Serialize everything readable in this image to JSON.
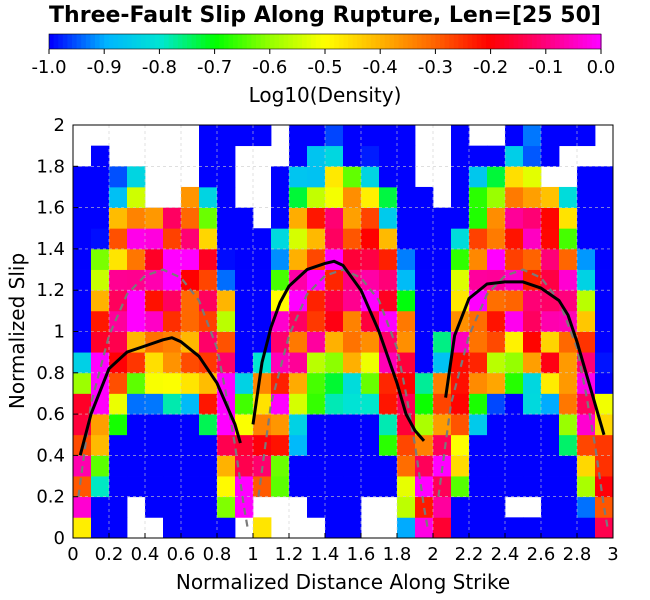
{
  "chart_data": {
    "type": "heatmap",
    "title": "Three-Fault Slip Along Rupture, Len=[25 50]",
    "xlabel": "Normalized Distance Along Strike",
    "ylabel": "Normalized Slip",
    "xlim": [
      0,
      3
    ],
    "ylim": [
      0,
      2
    ],
    "x_ticks": [
      "0",
      "0.2",
      "0.4",
      "0.6",
      "0.8",
      "1",
      "1.2",
      "1.4",
      "1.6",
      "1.8",
      "2",
      "2.2",
      "2.4",
      "2.6",
      "2.8",
      "3"
    ],
    "y_ticks": [
      "0",
      "0.2",
      "0.4",
      "0.6",
      "0.8",
      "1",
      "1.2",
      "1.4",
      "1.6",
      "1.8",
      "2"
    ],
    "grid": true,
    "colorbar": {
      "label": "Log10(Density)",
      "range": [
        -1.0,
        0.0
      ],
      "ticks": [
        "-1.0",
        "-0.9",
        "-0.8",
        "-0.7",
        "-0.6",
        "-0.5",
        "-0.4",
        "-0.3",
        "-0.2",
        "-0.1",
        "0.0"
      ],
      "placement": "top",
      "colors": [
        "#0000ff",
        "#00b4ff",
        "#00e6d2",
        "#00ff00",
        "#96ff00",
        "#ffff00",
        "#ffb400",
        "#ff6400",
        "#ff0000",
        "#ff0078",
        "#ff00ff"
      ]
    },
    "mean_slip_series": {
      "style": "solid black",
      "segments": [
        {
          "x": [
            0.04,
            0.1,
            0.2,
            0.3,
            0.4,
            0.5,
            0.55,
            0.6,
            0.7,
            0.8,
            0.85,
            0.9,
            0.93
          ],
          "y": [
            0.4,
            0.6,
            0.82,
            0.9,
            0.93,
            0.96,
            0.97,
            0.95,
            0.88,
            0.75,
            0.65,
            0.55,
            0.46
          ]
        },
        {
          "x": [
            1.0,
            1.05,
            1.1,
            1.15,
            1.2,
            1.3,
            1.4,
            1.45,
            1.5,
            1.6,
            1.7,
            1.8,
            1.85,
            1.9,
            1.95
          ],
          "y": [
            0.55,
            0.85,
            1.02,
            1.14,
            1.22,
            1.3,
            1.33,
            1.34,
            1.32,
            1.2,
            1.0,
            0.75,
            0.6,
            0.52,
            0.47
          ]
        },
        {
          "x": [
            2.07,
            2.12,
            2.2,
            2.3,
            2.4,
            2.5,
            2.6,
            2.7,
            2.75,
            2.8,
            2.85,
            2.9,
            2.95
          ],
          "y": [
            0.68,
            0.98,
            1.16,
            1.23,
            1.24,
            1.24,
            1.21,
            1.15,
            1.08,
            0.95,
            0.8,
            0.65,
            0.5
          ]
        }
      ]
    },
    "reference_series": {
      "style": "dashed gray",
      "segments": [
        {
          "x": [
            0.03,
            0.1,
            0.2,
            0.3,
            0.4,
            0.5,
            0.6,
            0.7,
            0.8,
            0.85,
            0.9,
            0.95,
            0.97
          ],
          "y": [
            0.2,
            0.65,
            0.98,
            1.18,
            1.27,
            1.3,
            1.26,
            1.15,
            0.92,
            0.7,
            0.45,
            0.15,
            0.05
          ]
        },
        {
          "x": [
            1.03,
            1.1,
            1.2,
            1.3,
            1.4,
            1.5,
            1.6,
            1.7,
            1.8,
            1.85,
            1.9,
            1.95,
            1.97
          ],
          "y": [
            0.2,
            0.65,
            0.98,
            1.18,
            1.27,
            1.3,
            1.26,
            1.15,
            0.92,
            0.7,
            0.45,
            0.15,
            0.05
          ]
        },
        {
          "x": [
            2.03,
            2.1,
            2.2,
            2.3,
            2.4,
            2.5,
            2.6,
            2.7,
            2.8,
            2.85,
            2.9,
            2.95,
            2.97
          ],
          "y": [
            0.2,
            0.65,
            0.98,
            1.18,
            1.27,
            1.3,
            1.26,
            1.15,
            0.92,
            0.7,
            0.45,
            0.15,
            0.05
          ]
        }
      ]
    },
    "density_model": {
      "resolution": [
        30,
        20
      ],
      "fault_bounds": [
        [
          0,
          1
        ],
        [
          1,
          2
        ],
        [
          2,
          3
        ]
      ],
      "peak_log10_density": -0.1,
      "blank_bins": [
        [
          0,
          18
        ],
        [
          0,
          19
        ],
        [
          1,
          19
        ],
        [
          2,
          18
        ],
        [
          2,
          19
        ],
        [
          3,
          18
        ],
        [
          3,
          19
        ],
        [
          4,
          16
        ],
        [
          4,
          17
        ],
        [
          4,
          18
        ],
        [
          4,
          19
        ],
        [
          5,
          16
        ],
        [
          5,
          17
        ],
        [
          5,
          18
        ],
        [
          5,
          19
        ],
        [
          9,
          16
        ],
        [
          9,
          17
        ],
        [
          9,
          18
        ],
        [
          10,
          15
        ],
        [
          10,
          16
        ],
        [
          10,
          17
        ],
        [
          10,
          18
        ],
        [
          6,
          18
        ],
        [
          6,
          19
        ],
        [
          6,
          17
        ],
        [
          11,
          18
        ],
        [
          11,
          19
        ],
        [
          20,
          18
        ],
        [
          20,
          17
        ],
        [
          20,
          16
        ],
        [
          19,
          17
        ],
        [
          19,
          18
        ],
        [
          19,
          19
        ],
        [
          20,
          19
        ],
        [
          22,
          19
        ],
        [
          23,
          19
        ],
        [
          26,
          17
        ],
        [
          27,
          17
        ],
        [
          27,
          18
        ],
        [
          28,
          18
        ],
        [
          29,
          18
        ],
        [
          29,
          19
        ],
        [
          11,
          0
        ],
        [
          11,
          1
        ],
        [
          12,
          0
        ],
        [
          12,
          1
        ],
        [
          13,
          0
        ],
        [
          16,
          0
        ],
        [
          16,
          1
        ],
        [
          17,
          0
        ],
        [
          17,
          1
        ],
        [
          3,
          0
        ],
        [
          3,
          1
        ],
        [
          4,
          0
        ],
        [
          10,
          1
        ],
        [
          24,
          1
        ],
        [
          25,
          1
        ],
        [
          9,
          0
        ]
      ]
    }
  }
}
